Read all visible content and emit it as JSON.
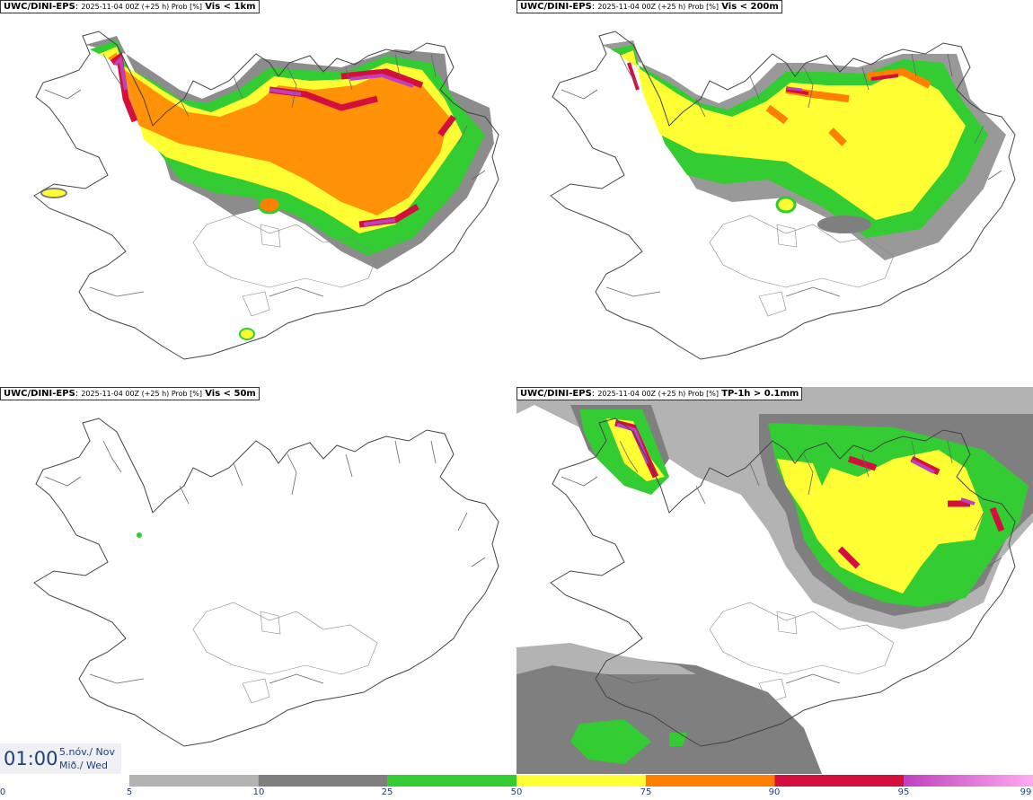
{
  "panels": [
    {
      "model": "UWC/DINI-EPS",
      "meta": "2025-11-04 00Z (+25 h) Prob [%]",
      "param": "Vis < 1km"
    },
    {
      "model": "UWC/DINI-EPS",
      "meta": "2025-11-04 00Z (+25 h) Prob [%]",
      "param": "Vis < 200m"
    },
    {
      "model": "UWC/DINI-EPS",
      "meta": "2025-11-04 00Z (+25 h) Prob [%]",
      "param": "Vis < 50m"
    },
    {
      "model": "UWC/DINI-EPS",
      "meta": "2025-11-04 00Z (+25 h) Prob [%]",
      "param": "TP-1h > 0.1mm"
    }
  ],
  "time": {
    "clock": "01:00",
    "date_line1": "5.nóv./ Nov",
    "date_line2": "Mið./ Wed"
  },
  "legend": {
    "ticks": [
      "0",
      "5",
      "10",
      "25",
      "50",
      "75",
      "90",
      "95",
      "99"
    ],
    "colors": [
      "#b3b3b3",
      "#7f7f7f",
      "#33cc33",
      "#ffff33",
      "#ff7f00",
      "#d40f3e",
      "#bf40bf",
      "#ffaaf0"
    ]
  }
}
